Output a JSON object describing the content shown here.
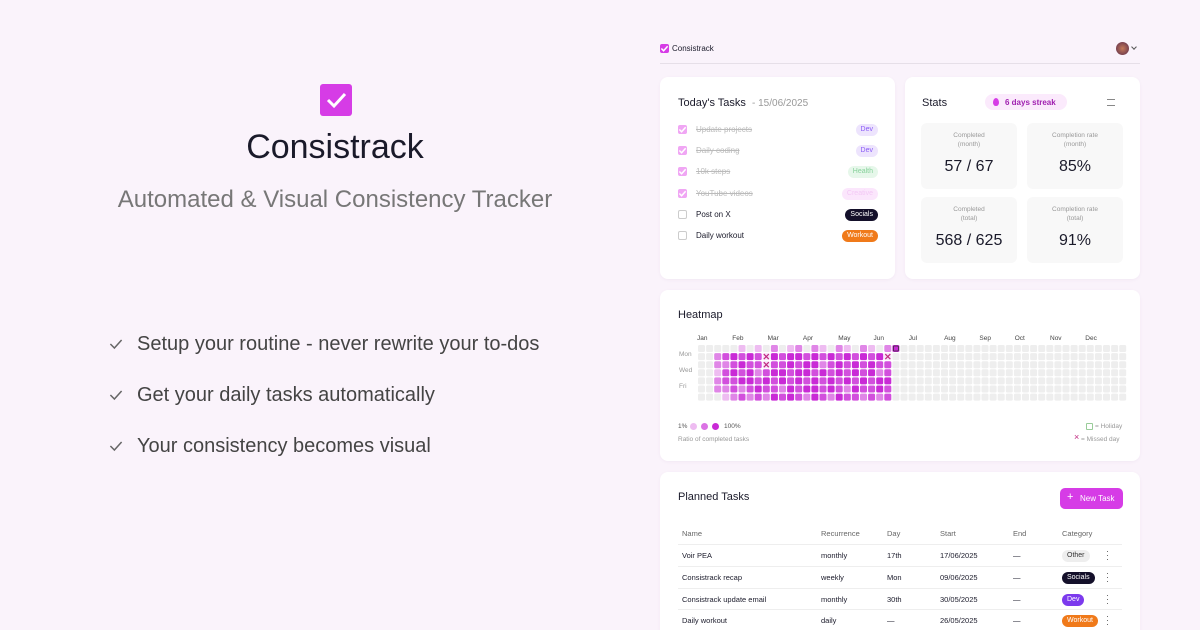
{
  "hero": {
    "title": "Consistrack",
    "subtitle": "Automated & Visual Consistency Tracker",
    "features": [
      "Setup your routine - never rewrite your to-dos",
      "Get your daily tasks automatically",
      "Your consistency becomes visual"
    ]
  },
  "app": {
    "brand": "Consistrack",
    "today": {
      "title": "Today's Tasks",
      "date": "- 15/06/2025",
      "tasks": [
        {
          "name": "Update projects",
          "done": true,
          "tag": {
            "label": "Dev",
            "fg": "#8b5cf6",
            "bg": "#ede4fd"
          }
        },
        {
          "name": "Daily coding",
          "done": true,
          "tag": {
            "label": "Dev",
            "fg": "#8b5cf6",
            "bg": "#ede4fd"
          }
        },
        {
          "name": "10k steps",
          "done": true,
          "tag": {
            "label": "Health",
            "fg": "#86d19a",
            "bg": "#e6f7ea"
          }
        },
        {
          "name": "YouTube videos",
          "done": true,
          "tag": {
            "label": "Creative",
            "fg": "#f3c8f5",
            "bg": "#fbe6fc"
          }
        },
        {
          "name": "Post on X",
          "done": false,
          "tag": {
            "label": "Socials",
            "fg": "#ffffff",
            "bg": "#14102a"
          }
        },
        {
          "name": "Daily workout",
          "done": false,
          "tag": {
            "label": "Workout",
            "fg": "#ffffff",
            "bg": "#f07a1a"
          }
        }
      ]
    },
    "stats": {
      "title": "Stats",
      "streak": "6 days streak",
      "cards": [
        {
          "label": [
            "Completed",
            "(month)"
          ],
          "value": "57 / 67"
        },
        {
          "label": [
            "Completion rate",
            "(month)"
          ],
          "value": "85%"
        },
        {
          "label": [
            "Completed",
            "(total)"
          ],
          "value": "568 / 625"
        },
        {
          "label": [
            "Completion rate",
            "(total)"
          ],
          "value": "91%"
        }
      ]
    },
    "heatmap": {
      "title": "Heatmap",
      "months": [
        "Jan",
        "Feb",
        "Mar",
        "Apr",
        "May",
        "Jun",
        "Jul",
        "Aug",
        "Sep",
        "Oct",
        "Nov",
        "Dec"
      ],
      "days": [
        "Mon",
        "Wed",
        "Fri"
      ],
      "legend_min": "1%",
      "legend_max": "100%",
      "legend_caption": "Ratio of completed tasks",
      "holiday": "= Holiday",
      "missed": "= Missed day",
      "weeks": [
        [
          null,
          null,
          null,
          null,
          null,
          null,
          null
        ],
        [
          null,
          null,
          null,
          null,
          null,
          null,
          null
        ],
        [
          null,
          50,
          50,
          20,
          50,
          50,
          null
        ],
        [
          null,
          80,
          50,
          80,
          80,
          50,
          20
        ],
        [
          null,
          100,
          80,
          100,
          80,
          80,
          50
        ],
        [
          20,
          80,
          100,
          80,
          100,
          50,
          80
        ],
        [
          null,
          100,
          80,
          100,
          100,
          80,
          50
        ],
        [
          20,
          80,
          80,
          50,
          80,
          100,
          80
        ],
        [
          null,
          0,
          0,
          80,
          100,
          80,
          50
        ],
        [
          50,
          100,
          80,
          100,
          80,
          80,
          100
        ],
        [
          null,
          80,
          80,
          100,
          100,
          50,
          80
        ],
        [
          20,
          100,
          100,
          80,
          80,
          100,
          100
        ],
        [
          50,
          100,
          80,
          100,
          100,
          80,
          80
        ],
        [
          null,
          80,
          100,
          100,
          80,
          100,
          50
        ],
        [
          50,
          100,
          100,
          80,
          100,
          100,
          100
        ],
        [
          20,
          80,
          50,
          100,
          80,
          80,
          80
        ],
        [
          null,
          100,
          80,
          80,
          100,
          100,
          50
        ],
        [
          50,
          80,
          100,
          100,
          80,
          80,
          100
        ],
        [
          20,
          100,
          80,
          80,
          100,
          50,
          80
        ],
        [
          null,
          80,
          100,
          100,
          80,
          100,
          80
        ],
        [
          50,
          100,
          80,
          80,
          100,
          80,
          50
        ],
        [
          20,
          80,
          100,
          100,
          80,
          80,
          80
        ],
        [
          null,
          100,
          80,
          50,
          100,
          100,
          50
        ],
        [
          50,
          0,
          80,
          80,
          100,
          80,
          80
        ],
        [
          100,
          null,
          null,
          null,
          null,
          null,
          null
        ]
      ],
      "missed_days": [
        {
          "week": 8,
          "day": 1
        },
        {
          "week": 8,
          "day": 2
        },
        {
          "week": 23,
          "day": 1
        }
      ],
      "holidays": [
        {
          "week": 24,
          "day": 0
        }
      ]
    },
    "planned": {
      "title": "Planned Tasks",
      "button": "New Task",
      "columns": [
        "Name",
        "Recurrence",
        "Day",
        "Start",
        "End",
        "Category"
      ],
      "rows": [
        {
          "cells": [
            "Voir PEA",
            "monthly",
            "17th",
            "17/06/2025",
            "—"
          ],
          "tag": {
            "label": "Other",
            "fg": "#333333",
            "bg": "#eeeeee"
          }
        },
        {
          "cells": [
            "Consistrack recap",
            "weekly",
            "Mon",
            "09/06/2025",
            "—"
          ],
          "tag": {
            "label": "Socials",
            "fg": "#ffffff",
            "bg": "#14102a"
          }
        },
        {
          "cells": [
            "Consistrack update email",
            "monthly",
            "30th",
            "30/05/2025",
            "—"
          ],
          "tag": {
            "label": "Dev",
            "fg": "#ffffff",
            "bg": "#7c3aed"
          }
        },
        {
          "cells": [
            "Daily workout",
            "daily",
            "—",
            "26/05/2025",
            "—"
          ],
          "tag": {
            "label": "Workout",
            "fg": "#ffffff",
            "bg": "#f07a1a"
          }
        }
      ]
    }
  }
}
